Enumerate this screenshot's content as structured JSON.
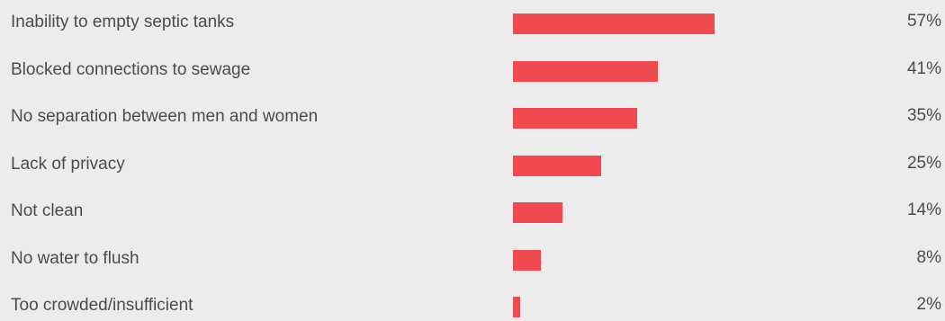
{
  "chart_data": {
    "type": "bar",
    "orientation": "horizontal",
    "categories": [
      "Inability to empty septic tanks",
      "Blocked connections to sewage",
      "No separation between men and women",
      "Lack of privacy",
      "Not clean",
      "No water to flush",
      "Too crowded/insufficient"
    ],
    "values": [
      57,
      41,
      35,
      25,
      14,
      8,
      2
    ],
    "value_labels": [
      "57%",
      "41%",
      "35%",
      "25%",
      "14%",
      "8%",
      "2%"
    ],
    "unit": "%",
    "xlim": [
      0,
      100
    ],
    "grid": false,
    "legend": "none",
    "colors": {
      "bar": "#f04a50",
      "text": "#4b4b4b",
      "background": "#ececec"
    }
  }
}
